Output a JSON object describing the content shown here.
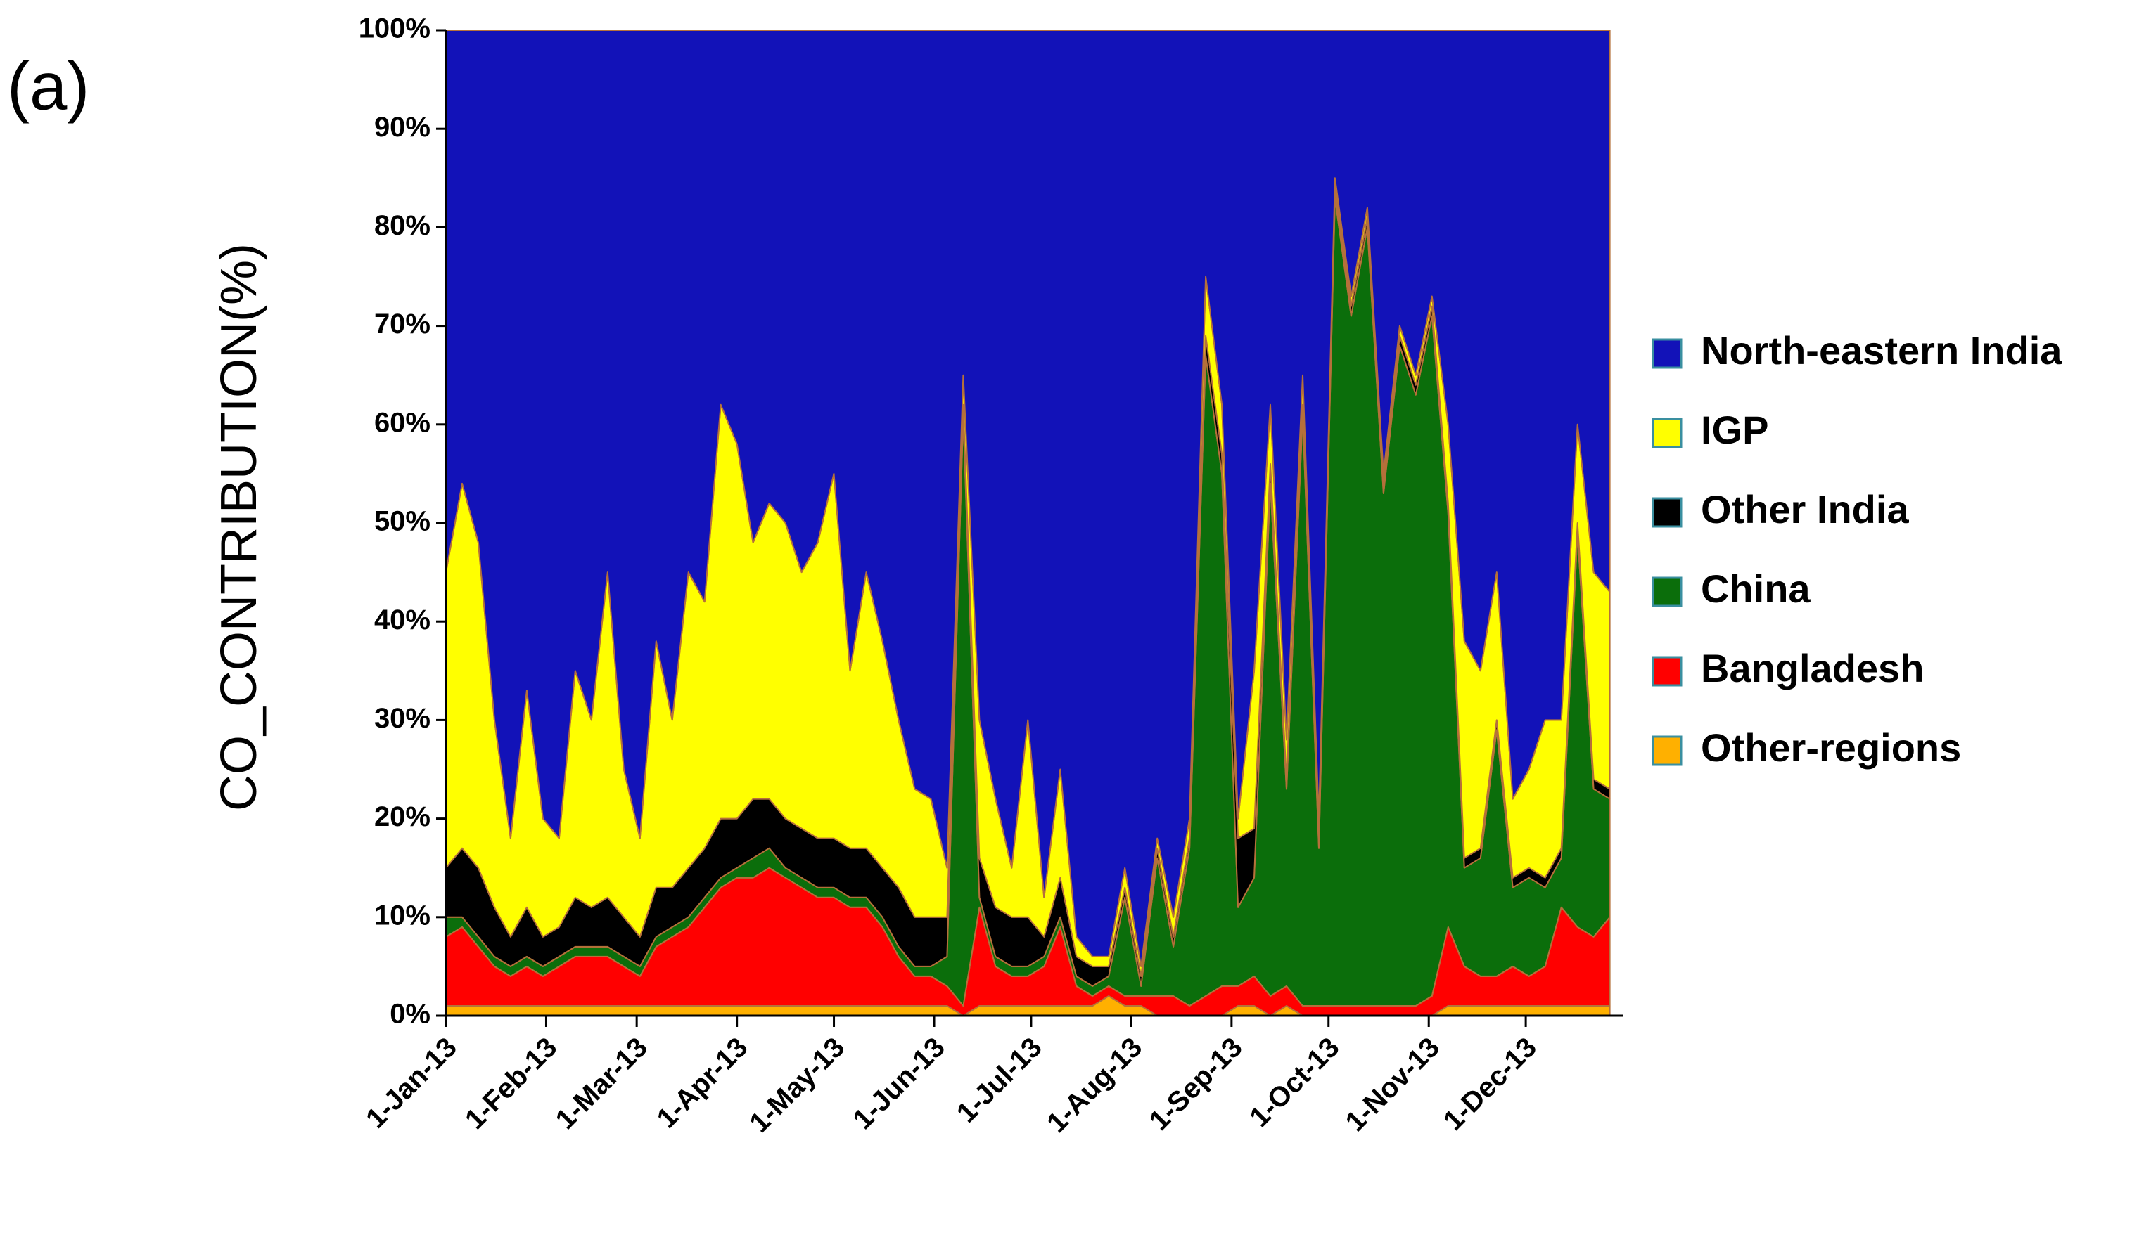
{
  "chart_data": {
    "type": "stacked_area",
    "panel_label": "(a)",
    "ylabel": "CO_CONTRIBUTION(%)",
    "x": [
      0,
      5,
      10,
      15,
      20,
      25,
      30,
      35,
      40,
      45,
      50,
      55,
      60,
      65,
      70,
      75,
      80,
      85,
      90,
      95,
      100,
      105,
      110,
      115,
      120,
      125,
      130,
      135,
      140,
      145,
      150,
      155,
      160,
      165,
      170,
      175,
      180,
      185,
      190,
      195,
      200,
      205,
      210,
      215,
      220,
      225,
      230,
      235,
      240,
      245,
      250,
      255,
      260,
      265,
      270,
      275,
      280,
      285,
      290,
      295,
      300,
      305,
      310,
      315,
      320,
      325,
      330,
      335,
      340,
      345,
      350,
      355,
      360
    ],
    "xlim": [
      0,
      364
    ],
    "xticks": [
      {
        "value": 0,
        "label": "1-Jan-13"
      },
      {
        "value": 31,
        "label": "1-Feb-13"
      },
      {
        "value": 59,
        "label": "1-Mar-13"
      },
      {
        "value": 90,
        "label": "1-Apr-13"
      },
      {
        "value": 120,
        "label": "1-May-13"
      },
      {
        "value": 151,
        "label": "1-Jun-13"
      },
      {
        "value": 181,
        "label": "1-Jul-13"
      },
      {
        "value": 212,
        "label": "1-Aug-13"
      },
      {
        "value": 243,
        "label": "1-Sep-13"
      },
      {
        "value": 273,
        "label": "1-Oct-13"
      },
      {
        "value": 304,
        "label": "1-Nov-13"
      },
      {
        "value": 334,
        "label": "1-Dec-13"
      }
    ],
    "ylim": [
      0,
      100
    ],
    "yticks": [
      {
        "value": 0,
        "label": "0%"
      },
      {
        "value": 10,
        "label": "10%"
      },
      {
        "value": 20,
        "label": "20%"
      },
      {
        "value": 30,
        "label": "30%"
      },
      {
        "value": 40,
        "label": "40%"
      },
      {
        "value": 50,
        "label": "50%"
      },
      {
        "value": 60,
        "label": "60%"
      },
      {
        "value": 70,
        "label": "70%"
      },
      {
        "value": 80,
        "label": "80%"
      },
      {
        "value": 90,
        "label": "90%"
      },
      {
        "value": 100,
        "label": "100%"
      }
    ],
    "legend": "right",
    "series": [
      {
        "name": "North-eastern India",
        "color": "#1212b8",
        "values": [
          55,
          46,
          52,
          70,
          82,
          67,
          80,
          82,
          65,
          70,
          55,
          75,
          82,
          62,
          70,
          55,
          58,
          38,
          42,
          52,
          48,
          50,
          55,
          52,
          45,
          65,
          55,
          62,
          70,
          77,
          78,
          85,
          35,
          70,
          78,
          85,
          70,
          88,
          75,
          92,
          94,
          94,
          85,
          95,
          82,
          90,
          80,
          25,
          38,
          80,
          65,
          38,
          72,
          35,
          80,
          15,
          27,
          18,
          45,
          30,
          35,
          27,
          40,
          62,
          65,
          55,
          78,
          75,
          70,
          70,
          40,
          55,
          57
        ]
      },
      {
        "name": "IGP",
        "color": "#ffff00",
        "values": [
          30,
          37,
          33,
          19,
          10,
          22,
          12,
          9,
          23,
          19,
          33,
          15,
          10,
          25,
          17,
          30,
          25,
          42,
          38,
          26,
          30,
          30,
          26,
          30,
          37,
          18,
          28,
          23,
          17,
          13,
          12,
          5,
          3,
          14,
          11,
          5,
          20,
          4,
          11,
          2,
          1,
          1,
          2,
          1,
          1,
          2,
          2,
          6,
          5,
          2,
          16,
          6,
          4,
          3,
          2,
          1,
          1,
          1,
          1,
          1,
          1,
          1,
          8,
          22,
          18,
          15,
          8,
          10,
          16,
          13,
          10,
          21,
          20
        ]
      },
      {
        "name": "Other India",
        "color": "#000000",
        "values": [
          5,
          7,
          7,
          5,
          3,
          5,
          3,
          3,
          5,
          4,
          5,
          4,
          3,
          5,
          4,
          5,
          5,
          6,
          5,
          6,
          5,
          5,
          5,
          5,
          5,
          5,
          5,
          5,
          6,
          5,
          5,
          4,
          1,
          4,
          5,
          5,
          5,
          2,
          4,
          2,
          2,
          1,
          1,
          1,
          1,
          1,
          1,
          2,
          2,
          7,
          5,
          2,
          1,
          1,
          1,
          1,
          1,
          1,
          1,
          1,
          1,
          1,
          1,
          1,
          1,
          1,
          1,
          1,
          1,
          1,
          1,
          1,
          1
        ]
      },
      {
        "name": "China",
        "color": "#0b6e0b",
        "values": [
          2,
          1,
          1,
          1,
          1,
          1,
          1,
          1,
          1,
          1,
          1,
          1,
          1,
          1,
          1,
          1,
          1,
          1,
          1,
          2,
          2,
          1,
          1,
          1,
          1,
          1,
          1,
          1,
          1,
          1,
          1,
          3,
          60,
          1,
          1,
          1,
          1,
          1,
          1,
          1,
          1,
          1,
          10,
          1,
          14,
          5,
          16,
          65,
          52,
          8,
          10,
          52,
          20,
          60,
          16,
          82,
          70,
          79,
          52,
          67,
          62,
          69,
          42,
          10,
          12,
          25,
          8,
          10,
          8,
          5,
          40,
          15,
          12
        ]
      },
      {
        "name": "Bangladesh",
        "color": "#ff0000",
        "values": [
          7,
          8,
          6,
          4,
          3,
          4,
          3,
          4,
          5,
          5,
          5,
          4,
          3,
          6,
          7,
          8,
          10,
          12,
          13,
          13,
          14,
          13,
          12,
          11,
          11,
          10,
          10,
          8,
          5,
          3,
          3,
          2,
          1,
          10,
          4,
          3,
          3,
          4,
          8,
          2,
          1,
          1,
          1,
          1,
          2,
          2,
          1,
          2,
          3,
          2,
          3,
          2,
          2,
          1,
          1,
          1,
          1,
          1,
          1,
          1,
          1,
          2,
          8,
          4,
          3,
          3,
          4,
          3,
          4,
          10,
          8,
          7,
          9
        ]
      },
      {
        "name": "Other-regions",
        "color": "#ffb000",
        "values": [
          1,
          1,
          1,
          1,
          1,
          1,
          1,
          1,
          1,
          1,
          1,
          1,
          1,
          1,
          1,
          1,
          1,
          1,
          1,
          1,
          1,
          1,
          1,
          1,
          1,
          1,
          1,
          1,
          1,
          1,
          1,
          1,
          0,
          1,
          1,
          1,
          1,
          1,
          1,
          1,
          1,
          2,
          1,
          1,
          0,
          0,
          0,
          0,
          0,
          1,
          1,
          0,
          1,
          0,
          0,
          0,
          0,
          0,
          0,
          0,
          0,
          0,
          1,
          1,
          1,
          1,
          1,
          1,
          1,
          1,
          1,
          1,
          1
        ]
      }
    ]
  }
}
